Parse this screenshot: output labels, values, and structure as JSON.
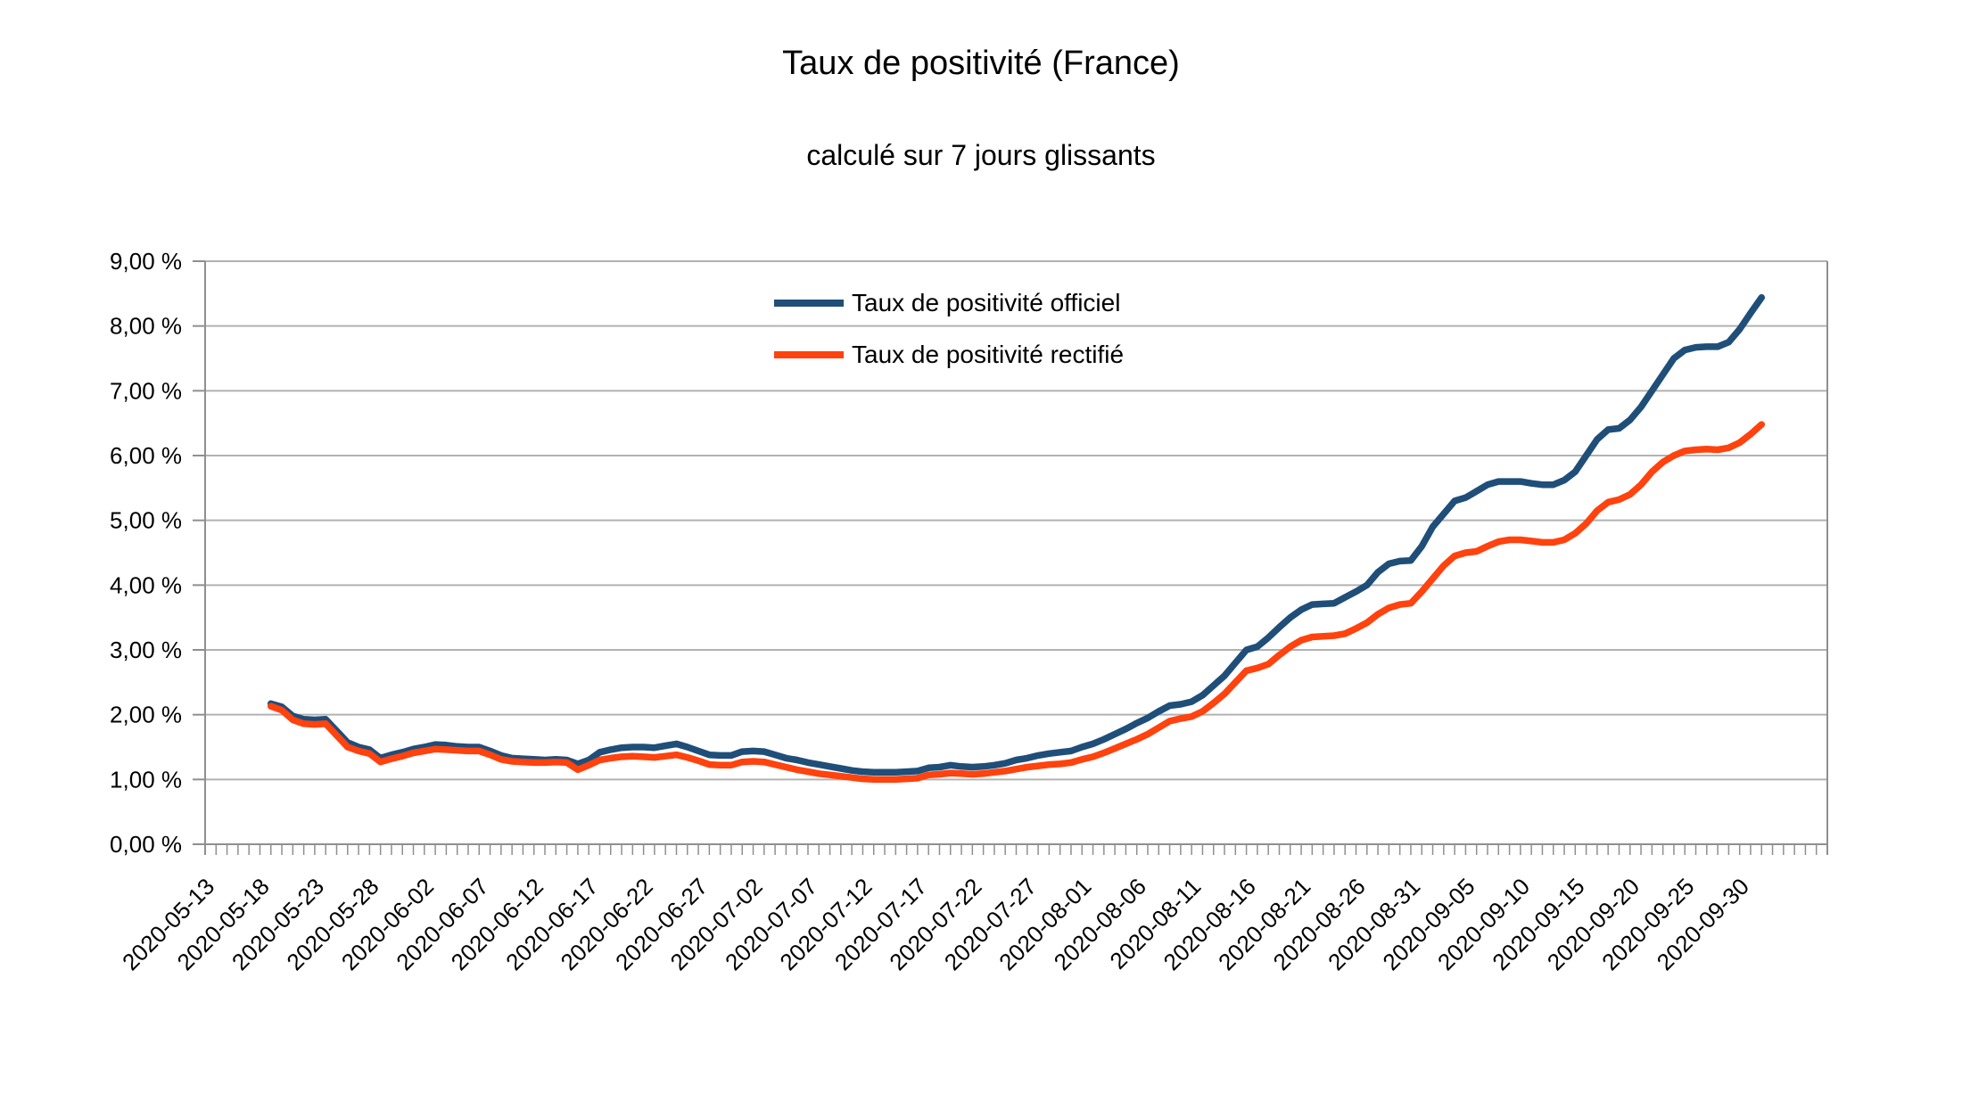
{
  "header": {
    "title": "Taux de positivité (France)",
    "subtitle": "calculé sur 7 jours glissants"
  },
  "colors": {
    "background": "#ffffff",
    "gridline": "#b2b2b2",
    "axis": "#8f8f8f",
    "text": "#000000",
    "series_officiel": "#1f4e79",
    "series_rectifie": "#ff420e"
  },
  "chart_data": {
    "type": "line",
    "title": "Taux de positivité (France)",
    "subtitle": "calculé sur 7 jours glissants",
    "grid": "horizontal",
    "legend": {
      "position": "inside-top-center"
    },
    "x_axis": {
      "start_date": "2020-05-13",
      "end_date": "2020-10-08",
      "tick_every_days": 1,
      "label_every_days": 5,
      "labels": [
        "2020-05-13",
        "2020-05-18",
        "2020-05-23",
        "2020-05-28",
        "2020-06-02",
        "2020-06-07",
        "2020-06-12",
        "2020-06-17",
        "2020-06-22",
        "2020-06-27",
        "2020-07-02",
        "2020-07-07",
        "2020-07-12",
        "2020-07-17",
        "2020-07-22",
        "2020-07-27",
        "2020-08-01",
        "2020-08-06",
        "2020-08-11",
        "2020-08-16",
        "2020-08-21",
        "2020-08-26",
        "2020-08-31",
        "2020-09-05",
        "2020-09-10",
        "2020-09-15",
        "2020-09-20",
        "2020-09-25",
        "2020-09-30"
      ]
    },
    "y_axis": {
      "min": 0,
      "max": 9,
      "unit": "%",
      "tick_labels": [
        "0,00 %",
        "1,00 %",
        "2,00 %",
        "3,00 %",
        "4,00 %",
        "5,00 %",
        "6,00 %",
        "7,00 %",
        "8,00 %",
        "9,00 %"
      ]
    },
    "series": [
      {
        "name": "Taux de positivité officiel",
        "color": "#1f4e79",
        "start_date": "2020-05-19",
        "unit": "%",
        "values": [
          2.17,
          2.12,
          1.98,
          1.93,
          1.92,
          1.93,
          1.75,
          1.57,
          1.5,
          1.46,
          1.33,
          1.38,
          1.42,
          1.47,
          1.5,
          1.54,
          1.53,
          1.51,
          1.5,
          1.5,
          1.44,
          1.37,
          1.33,
          1.32,
          1.31,
          1.3,
          1.31,
          1.3,
          1.24,
          1.3,
          1.42,
          1.46,
          1.49,
          1.5,
          1.5,
          1.49,
          1.52,
          1.55,
          1.5,
          1.44,
          1.38,
          1.37,
          1.37,
          1.43,
          1.44,
          1.43,
          1.38,
          1.33,
          1.3,
          1.26,
          1.23,
          1.2,
          1.17,
          1.14,
          1.12,
          1.11,
          1.11,
          1.11,
          1.12,
          1.13,
          1.18,
          1.19,
          1.22,
          1.2,
          1.19,
          1.2,
          1.22,
          1.25,
          1.3,
          1.33,
          1.37,
          1.4,
          1.42,
          1.44,
          1.5,
          1.55,
          1.62,
          1.7,
          1.78,
          1.87,
          1.95,
          2.05,
          2.14,
          2.16,
          2.2,
          2.3,
          2.45,
          2.6,
          2.8,
          3.0,
          3.05,
          3.19,
          3.35,
          3.5,
          3.62,
          3.7,
          3.71,
          3.72,
          3.81,
          3.9,
          4.0,
          4.2,
          4.33,
          4.37,
          4.38,
          4.6,
          4.9,
          5.1,
          5.3,
          5.35,
          5.45,
          5.55,
          5.6,
          5.6,
          5.6,
          5.57,
          5.55,
          5.55,
          5.62,
          5.75,
          6.0,
          6.25,
          6.4,
          6.42,
          6.55,
          6.75,
          7.0,
          7.25,
          7.5,
          7.63,
          7.67,
          7.68,
          7.68,
          7.75,
          7.95,
          8.2,
          8.44
        ]
      },
      {
        "name": "Taux de positivité rectifié",
        "color": "#ff420e",
        "start_date": "2020-05-19",
        "unit": "%",
        "values": [
          2.13,
          2.07,
          1.92,
          1.86,
          1.85,
          1.86,
          1.68,
          1.5,
          1.44,
          1.4,
          1.27,
          1.32,
          1.36,
          1.41,
          1.44,
          1.47,
          1.46,
          1.45,
          1.44,
          1.44,
          1.38,
          1.31,
          1.28,
          1.27,
          1.26,
          1.26,
          1.27,
          1.26,
          1.15,
          1.22,
          1.3,
          1.33,
          1.35,
          1.36,
          1.35,
          1.34,
          1.36,
          1.38,
          1.34,
          1.29,
          1.23,
          1.22,
          1.22,
          1.27,
          1.28,
          1.27,
          1.23,
          1.19,
          1.15,
          1.12,
          1.09,
          1.07,
          1.05,
          1.03,
          1.01,
          1.0,
          1.0,
          1.0,
          1.01,
          1.02,
          1.07,
          1.08,
          1.1,
          1.09,
          1.08,
          1.09,
          1.11,
          1.13,
          1.16,
          1.19,
          1.21,
          1.23,
          1.24,
          1.26,
          1.31,
          1.35,
          1.41,
          1.48,
          1.55,
          1.62,
          1.7,
          1.8,
          1.9,
          1.94,
          1.97,
          2.05,
          2.18,
          2.32,
          2.5,
          2.68,
          2.72,
          2.78,
          2.92,
          3.05,
          3.15,
          3.2,
          3.21,
          3.22,
          3.25,
          3.33,
          3.42,
          3.55,
          3.65,
          3.7,
          3.72,
          3.9,
          4.1,
          4.3,
          4.45,
          4.5,
          4.52,
          4.6,
          4.67,
          4.7,
          4.7,
          4.68,
          4.66,
          4.66,
          4.7,
          4.8,
          4.95,
          5.15,
          5.28,
          5.32,
          5.4,
          5.55,
          5.75,
          5.9,
          6.0,
          6.07,
          6.09,
          6.1,
          6.09,
          6.12,
          6.2,
          6.33,
          6.48
        ]
      }
    ]
  }
}
